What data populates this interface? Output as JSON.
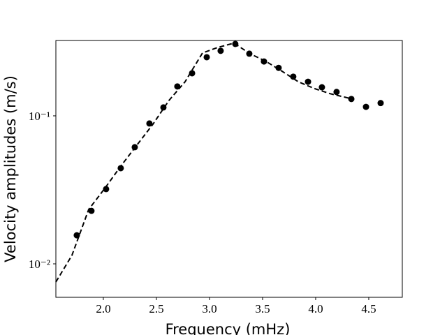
{
  "chart_data": {
    "type": "scatter",
    "xlabel": "Frequency (mHz)",
    "ylabel": "Velocity amplitudes (m/s)",
    "xlim": [
      1.553,
      4.816
    ],
    "ylim": [
      0.00594,
      0.323
    ],
    "ylog": true,
    "xticks": [
      {
        "value": 2.0,
        "label": "2.0"
      },
      {
        "value": 2.5,
        "label": "2.5"
      },
      {
        "value": 3.0,
        "label": "3.0"
      },
      {
        "value": 3.5,
        "label": "3.5"
      },
      {
        "value": 4.0,
        "label": "4.0"
      },
      {
        "value": 4.5,
        "label": "4.5"
      }
    ],
    "yticks": [
      {
        "value": 0.01,
        "label": "10⁻²"
      },
      {
        "value": 0.1,
        "label": "10⁻¹"
      }
    ],
    "series": [
      {
        "type": "scatter",
        "color": "#000000",
        "x": [
          1.75,
          1.888,
          2.026,
          2.164,
          2.296,
          2.434,
          2.566,
          2.697,
          2.836,
          2.974,
          3.105,
          3.243,
          3.375,
          3.513,
          3.651,
          3.789,
          3.928,
          4.059,
          4.197,
          4.336,
          4.474,
          4.612
        ],
        "values": [
          0.0156,
          0.0228,
          0.032,
          0.0443,
          0.0614,
          0.0888,
          0.114,
          0.158,
          0.194,
          0.249,
          0.275,
          0.306,
          0.263,
          0.233,
          0.211,
          0.184,
          0.17,
          0.156,
          0.145,
          0.13,
          0.115,
          0.122
        ]
      },
      {
        "type": "line",
        "color": "#000000",
        "dashed": true,
        "x": [
          1.553,
          1.704,
          1.862,
          2.013,
          2.164,
          2.316,
          2.467,
          2.618,
          2.77,
          2.934,
          3.079,
          3.23,
          3.382,
          3.533,
          3.684,
          3.836,
          3.987,
          4.138,
          4.289,
          4.34
        ],
        "values": [
          0.00754,
          0.0114,
          0.0233,
          0.0323,
          0.0457,
          0.0634,
          0.0877,
          0.127,
          0.17,
          0.266,
          0.29,
          0.31,
          0.263,
          0.233,
          0.2,
          0.17,
          0.153,
          0.141,
          0.133,
          0.13
        ]
      }
    ]
  }
}
